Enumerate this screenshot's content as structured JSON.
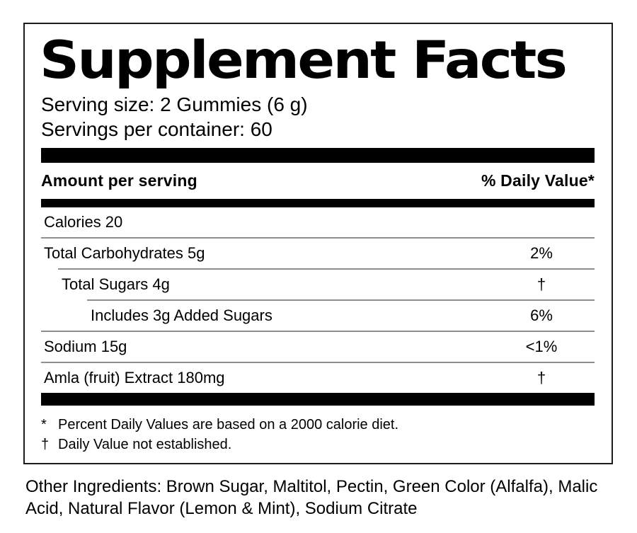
{
  "label": {
    "title": "Supplement Facts",
    "serving_size": "Serving size: 2 Gummies (6 g)",
    "servings_per_container": "Servings per container: 60",
    "columns": {
      "amount": "Amount per serving",
      "daily_value": "% Daily Value*"
    },
    "rows": [
      {
        "name": "Calories 20",
        "value": "",
        "indent": 0
      },
      {
        "name": "Total Carbohydrates 5g",
        "value": "2%",
        "indent": 0
      },
      {
        "name": "Total Sugars 4g",
        "value": "†",
        "indent": 1
      },
      {
        "name": "Includes 3g Added Sugars",
        "value": "6%",
        "indent": 2
      },
      {
        "name": "Sodium 15g",
        "value": "<1%",
        "indent": 0
      },
      {
        "name": "Amla (fruit) Extract 180mg",
        "value": "†",
        "indent": 0
      }
    ],
    "footnotes": [
      {
        "symbol": "*",
        "text": "Percent Daily Values are based on a 2000 calorie diet."
      },
      {
        "symbol": "†",
        "text": "Daily Value not established."
      }
    ],
    "other_ingredients": "Other Ingredients: Brown Sugar, Maltitol, Pectin, Green Color (Alfalfa), Malic Acid, Natural Flavor (Lemon & Mint), Sodium Citrate"
  },
  "colors": {
    "text": "#000000",
    "background": "#ffffff",
    "separator_bar": "#000000",
    "divider_line": "#8e8e8e",
    "panel_border": "#1c1c1c"
  }
}
